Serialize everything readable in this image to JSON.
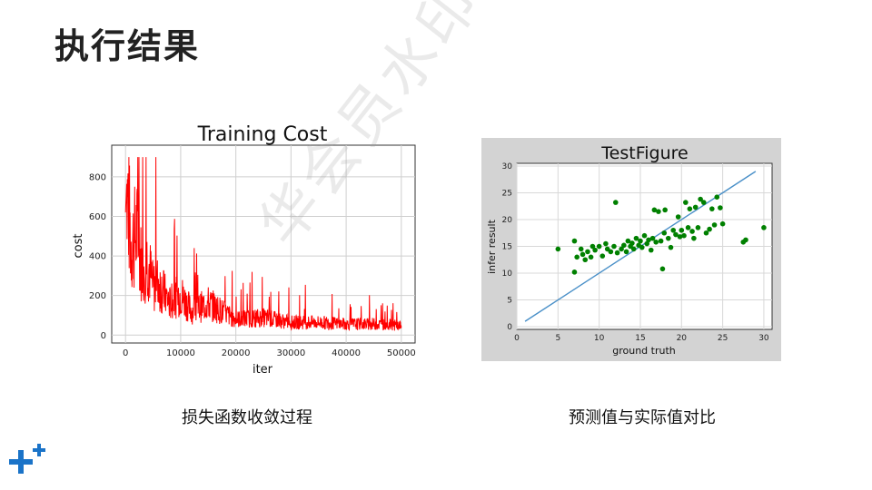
{
  "slide": {
    "title": "执行结果",
    "watermark": "华会员水印"
  },
  "captions": {
    "left": "损失函数收敛过程",
    "right": "预测值与实际值对比"
  },
  "colors": {
    "cost_line": "#ff0000",
    "scatter_points": "#008000",
    "fit_line": "#4a90c8",
    "right_panel_bg": "#d3d3d3",
    "logo": "#1a73c8"
  },
  "chart_data": [
    {
      "type": "line",
      "title": "Training Cost",
      "xlabel": "iter",
      "ylabel": "cost",
      "xlim": [
        -2500,
        52500
      ],
      "ylim": [
        -40,
        960
      ],
      "xticks": [
        0,
        10000,
        20000,
        30000,
        40000,
        50000
      ],
      "yticks": [
        0,
        200,
        400,
        600,
        800
      ],
      "grid": true,
      "series": [
        {
          "description_points": [
            [
              0,
              620
            ],
            [
              400,
              880
            ],
            [
              1000,
              560
            ],
            [
              2000,
              650
            ],
            [
              3000,
              420
            ],
            [
              4000,
              480
            ],
            [
              5000,
              300
            ],
            [
              6000,
              330
            ],
            [
              8000,
              200
            ],
            [
              10000,
              260
            ],
            [
              12000,
              150
            ],
            [
              15000,
              200
            ],
            [
              20000,
              100
            ],
            [
              25000,
              110
            ],
            [
              30000,
              80
            ],
            [
              35000,
              80
            ],
            [
              40000,
              70
            ],
            [
              45000,
              70
            ],
            [
              50000,
              60
            ]
          ]
        }
      ]
    },
    {
      "type": "scatter",
      "title": "TestFigure",
      "xlabel": "ground truth",
      "ylabel": "infer result",
      "xlim": [
        0,
        31
      ],
      "ylim": [
        -0.5,
        30.5
      ],
      "xticks": [
        0,
        5,
        10,
        15,
        20,
        25,
        30
      ],
      "yticks": [
        0,
        5,
        10,
        15,
        20,
        25,
        30
      ],
      "grid": true,
      "line": [
        [
          1,
          1
        ],
        [
          29,
          29
        ]
      ],
      "points": [
        [
          5,
          14.5
        ],
        [
          7,
          16
        ],
        [
          7,
          10.2
        ],
        [
          7.3,
          13
        ],
        [
          7.8,
          14.5
        ],
        [
          8,
          13.5
        ],
        [
          8.3,
          12.5
        ],
        [
          8.6,
          14
        ],
        [
          9,
          13
        ],
        [
          9.2,
          15
        ],
        [
          9.5,
          14.3
        ],
        [
          10,
          15
        ],
        [
          10.4,
          13.2
        ],
        [
          10.8,
          15.5
        ],
        [
          11,
          14.5
        ],
        [
          11.4,
          14
        ],
        [
          11.8,
          15
        ],
        [
          12,
          23.2
        ],
        [
          12.2,
          13.8
        ],
        [
          12.7,
          14.5
        ],
        [
          13,
          15.2
        ],
        [
          13.3,
          14
        ],
        [
          13.5,
          16
        ],
        [
          13.8,
          15
        ],
        [
          14,
          15.6
        ],
        [
          14.2,
          14.5
        ],
        [
          14.5,
          16.5
        ],
        [
          14.8,
          15.2
        ],
        [
          15,
          16
        ],
        [
          15.2,
          14.8
        ],
        [
          15.5,
          17
        ],
        [
          15.8,
          15.5
        ],
        [
          16,
          16.2
        ],
        [
          16.3,
          14.3
        ],
        [
          16.5,
          16.5
        ],
        [
          16.7,
          21.8
        ],
        [
          16.9,
          15.8
        ],
        [
          17.2,
          21.5
        ],
        [
          17.5,
          16
        ],
        [
          17.7,
          10.8
        ],
        [
          17.9,
          17.5
        ],
        [
          18,
          21.8
        ],
        [
          18.4,
          16.5
        ],
        [
          18.7,
          14.8
        ],
        [
          19,
          18
        ],
        [
          19.3,
          17.2
        ],
        [
          19.6,
          20.5
        ],
        [
          19.8,
          16.8
        ],
        [
          20,
          18
        ],
        [
          20.3,
          17
        ],
        [
          20.5,
          23.2
        ],
        [
          20.8,
          18.5
        ],
        [
          21,
          22
        ],
        [
          21.3,
          17.8
        ],
        [
          21.5,
          16.5
        ],
        [
          21.7,
          22.3
        ],
        [
          22,
          18.5
        ],
        [
          22.3,
          23.8
        ],
        [
          22.7,
          23.2
        ],
        [
          23,
          17.5
        ],
        [
          23.4,
          18.2
        ],
        [
          23.7,
          22
        ],
        [
          24,
          19
        ],
        [
          24.3,
          24.2
        ],
        [
          24.7,
          22.2
        ],
        [
          25,
          19.2
        ],
        [
          27.5,
          15.8
        ],
        [
          27.8,
          16.2
        ],
        [
          30,
          18.5
        ]
      ]
    }
  ]
}
